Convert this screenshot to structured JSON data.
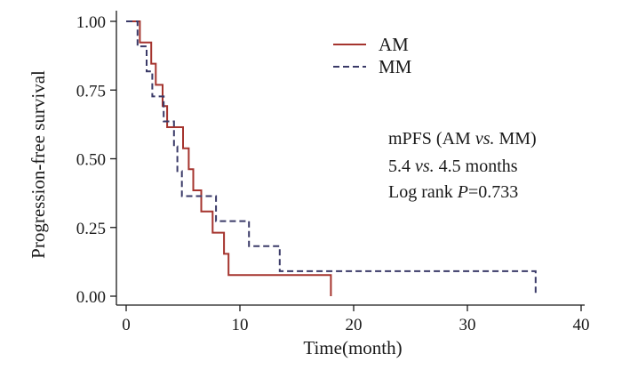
{
  "chart_data": {
    "type": "line",
    "subtype": "kaplan-meier",
    "title": "",
    "xlabel": "Time(month)",
    "ylabel": "Progression-free survival",
    "xlim": [
      0,
      40
    ],
    "ylim": [
      0,
      1
    ],
    "x_ticks": [
      0,
      10,
      20,
      30,
      40
    ],
    "x_tick_labels": [
      "0",
      "10",
      "20",
      "30",
      "40"
    ],
    "y_ticks": [
      0,
      0.25,
      0.5,
      0.75,
      1.0
    ],
    "y_tick_labels": [
      "0.00",
      "0.25",
      "0.50",
      "0.75",
      "1.00"
    ],
    "grid": false,
    "legend_position": "top-right",
    "series": [
      {
        "name": "AM",
        "color": "#a5342e",
        "dash": "solid",
        "steps": [
          [
            0,
            1.0
          ],
          [
            1.2,
            1.0
          ],
          [
            1.2,
            0.923
          ],
          [
            2.2,
            0.923
          ],
          [
            2.2,
            0.846
          ],
          [
            2.6,
            0.846
          ],
          [
            2.6,
            0.769
          ],
          [
            3.2,
            0.769
          ],
          [
            3.2,
            0.692
          ],
          [
            3.6,
            0.692
          ],
          [
            3.6,
            0.615
          ],
          [
            5.0,
            0.615
          ],
          [
            5.0,
            0.538
          ],
          [
            5.5,
            0.538
          ],
          [
            5.5,
            0.462
          ],
          [
            5.9,
            0.462
          ],
          [
            5.9,
            0.385
          ],
          [
            6.6,
            0.385
          ],
          [
            6.6,
            0.308
          ],
          [
            7.6,
            0.308
          ],
          [
            7.6,
            0.231
          ],
          [
            8.6,
            0.231
          ],
          [
            8.6,
            0.154
          ],
          [
            9.0,
            0.154
          ],
          [
            9.0,
            0.077
          ],
          [
            18.0,
            0.077
          ],
          [
            18.0,
            0.0
          ]
        ]
      },
      {
        "name": "MM",
        "color": "#3a3a68",
        "dash": "dashed",
        "steps": [
          [
            0,
            1.0
          ],
          [
            1.0,
            1.0
          ],
          [
            1.0,
            0.909
          ],
          [
            1.8,
            0.909
          ],
          [
            1.8,
            0.818
          ],
          [
            2.3,
            0.818
          ],
          [
            2.3,
            0.727
          ],
          [
            3.3,
            0.727
          ],
          [
            3.3,
            0.636
          ],
          [
            4.2,
            0.636
          ],
          [
            4.2,
            0.545
          ],
          [
            4.5,
            0.545
          ],
          [
            4.5,
            0.455
          ],
          [
            4.9,
            0.455
          ],
          [
            4.9,
            0.364
          ],
          [
            7.9,
            0.364
          ],
          [
            7.9,
            0.273
          ],
          [
            10.8,
            0.273
          ],
          [
            10.8,
            0.182
          ],
          [
            13.5,
            0.182
          ],
          [
            13.5,
            0.091
          ],
          [
            36.0,
            0.091
          ],
          [
            36.0,
            0.0
          ]
        ]
      }
    ],
    "legend": [
      {
        "name": "AM",
        "color": "#a5342e",
        "dash": "solid"
      },
      {
        "name": "MM",
        "color": "#3a3a68",
        "dash": "dashed"
      }
    ],
    "annotations": [
      "mPFS (AM vs. MM)",
      "5.4 vs. 4.5 months",
      "Log rank P=0.733"
    ]
  }
}
